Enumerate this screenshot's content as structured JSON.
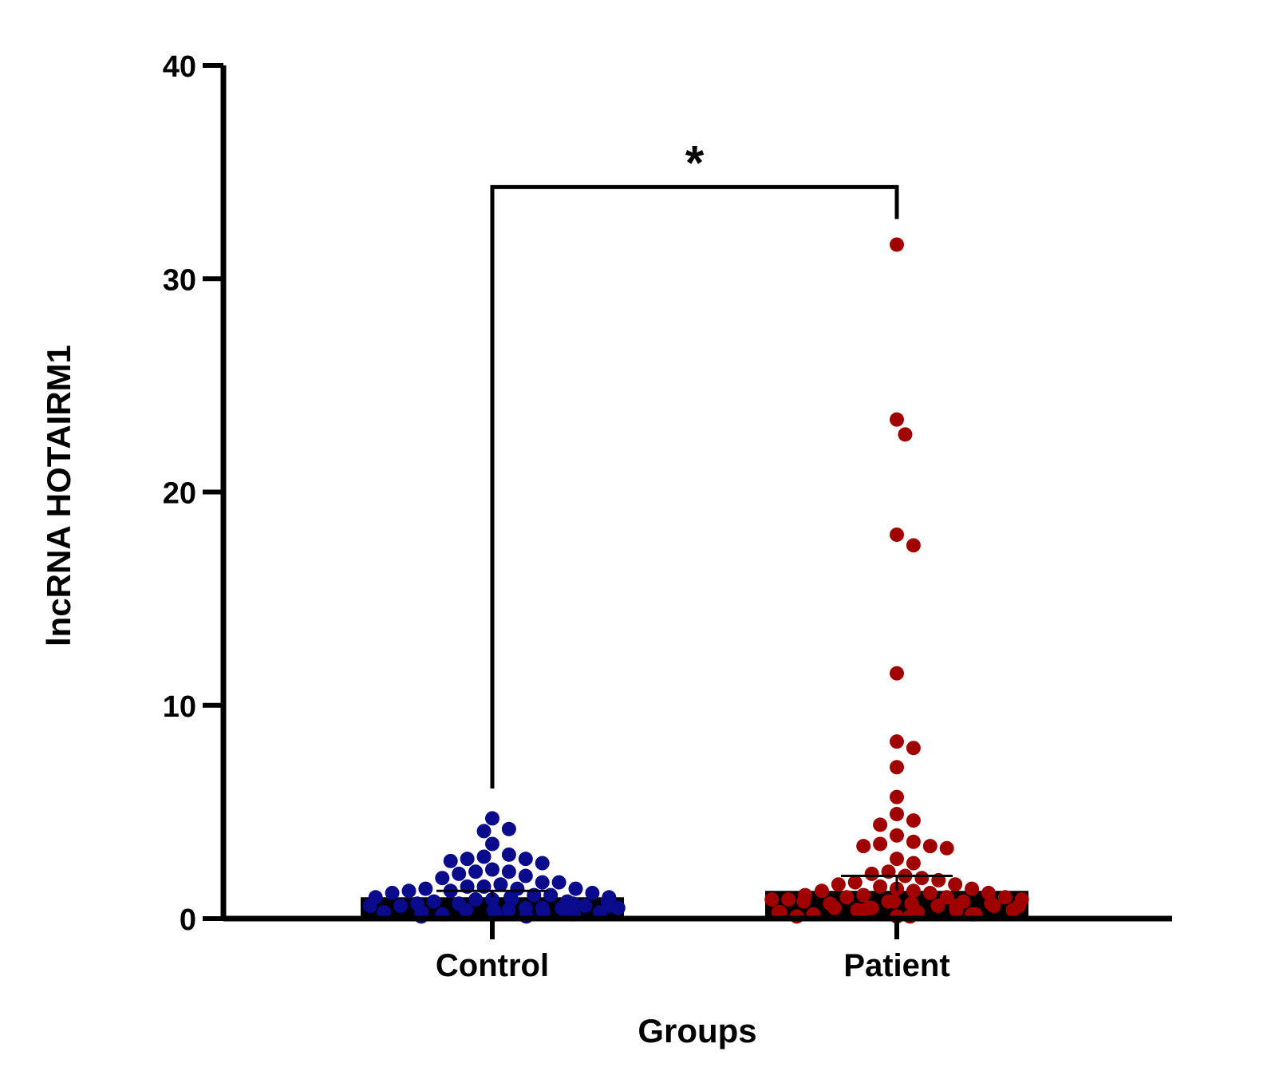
{
  "chart_data": {
    "type": "bar",
    "subtype": "bar-with-scatter-points",
    "categories": [
      "Control",
      "Patient"
    ],
    "xlabel": "Groups",
    "ylabel": "lncRNA HOTAIRM1",
    "ylim": [
      0,
      40
    ],
    "yticks": [
      "0",
      "10",
      "20",
      "30",
      "40"
    ],
    "grid": false,
    "significance": {
      "label": "*",
      "between": [
        "Control",
        "Patient"
      ]
    },
    "colors": {
      "Control": "#0a0a8c",
      "Patient": "#a00000",
      "bar": "#000000"
    },
    "series": [
      {
        "category": "Control",
        "mean": 1.0,
        "sem": 0.3,
        "points": [
          4.7,
          4.2,
          4.1,
          3.5,
          3.0,
          2.9,
          2.8,
          2.8,
          2.7,
          2.6,
          2.3,
          2.2,
          2.2,
          2.1,
          2.0,
          1.9,
          1.7,
          1.7,
          1.6,
          1.5,
          1.5,
          1.4,
          1.4,
          1.4,
          1.3,
          1.3,
          1.2,
          1.2,
          1.1,
          1.1,
          1.0,
          1.0,
          1.0,
          0.9,
          0.9,
          0.9,
          0.8,
          0.8,
          0.8,
          0.8,
          0.7,
          0.7,
          0.7,
          0.7,
          0.6,
          0.6,
          0.6,
          0.6,
          0.5,
          0.5,
          0.5,
          0.5,
          0.4,
          0.4,
          0.4,
          0.4,
          0.3,
          0.3,
          0.3,
          0.3,
          0.2,
          0.2,
          0.2,
          0.1,
          0.1
        ]
      },
      {
        "category": "Patient",
        "mean": 1.3,
        "sem": 0.7,
        "points": [
          31.6,
          23.4,
          22.7,
          18.0,
          17.5,
          11.5,
          8.3,
          8.0,
          7.1,
          5.7,
          4.9,
          4.6,
          4.4,
          3.9,
          3.6,
          3.5,
          3.4,
          3.4,
          3.3,
          2.8,
          2.6,
          2.2,
          2.1,
          2.0,
          1.9,
          1.8,
          1.7,
          1.6,
          1.6,
          1.5,
          1.4,
          1.4,
          1.3,
          1.3,
          1.2,
          1.2,
          1.1,
          1.1,
          1.0,
          1.0,
          1.0,
          0.9,
          0.9,
          0.9,
          0.8,
          0.8,
          0.8,
          0.8,
          0.7,
          0.7,
          0.7,
          0.7,
          0.6,
          0.6,
          0.6,
          0.6,
          0.5,
          0.5,
          0.5,
          0.5,
          0.4,
          0.4,
          0.4,
          0.4,
          0.3,
          0.3,
          0.3,
          0.2,
          0.2,
          0.2,
          0.1,
          0.1,
          0.1
        ]
      }
    ]
  }
}
